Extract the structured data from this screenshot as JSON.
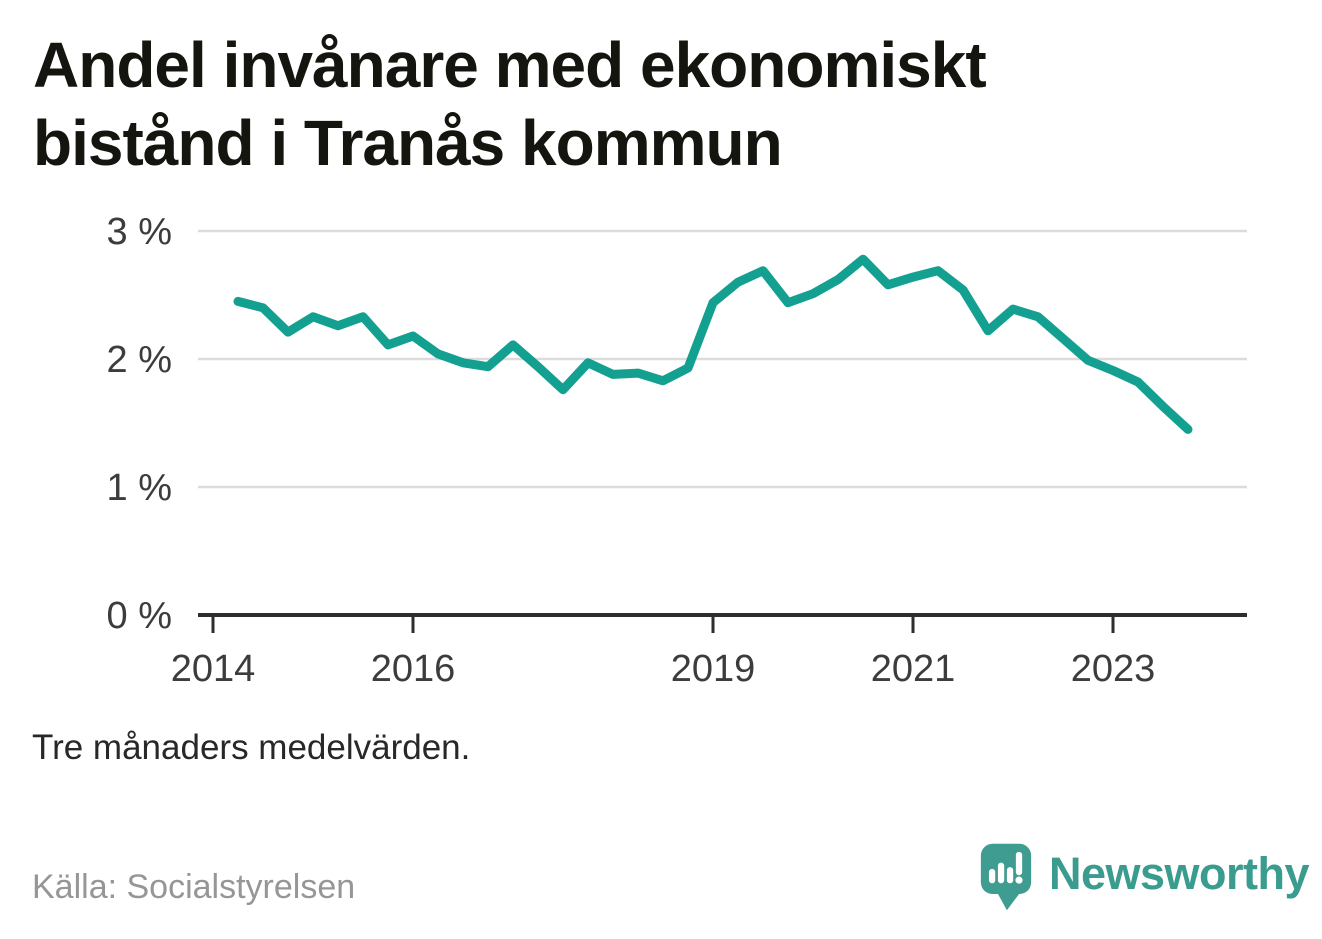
{
  "title": {
    "line1": "Andel invånare med ekonomiskt",
    "line2": "bistånd i Tranås kommun"
  },
  "footnote": "Tre månaders medelvärden.",
  "source": "Källa: Socialstyrelsen",
  "logo": {
    "brand": "Newsworthy",
    "icon": "newsworthy-pin-barchart-icon"
  },
  "colors": {
    "line": "#14a091",
    "grid": "#dcdcdc",
    "axis": "#2e2e2e",
    "tick_label": "#3c3c3c",
    "title_text": "#15150f",
    "note_text": "#282828",
    "source_text": "#969696",
    "logo_teal": "#3f9c90",
    "brand_text": "#3a9b8f"
  },
  "chart_data": {
    "type": "line",
    "title": "Andel invånare med ekonomiskt bistånd i Tranås kommun",
    "unit": "%",
    "series_name": "Andel invånare med ekonomiskt bistånd, Tranås kommun",
    "x_start_year": 2014.25,
    "x_step_years": 0.25,
    "values": [
      2.45,
      2.4,
      2.21,
      2.33,
      2.26,
      2.33,
      2.11,
      2.18,
      2.04,
      1.97,
      1.94,
      2.11,
      1.94,
      1.76,
      1.97,
      1.88,
      1.89,
      1.83,
      1.93,
      2.44,
      2.6,
      2.69,
      2.44,
      2.51,
      2.62,
      2.78,
      2.58,
      2.64,
      2.69,
      2.54,
      2.22,
      2.39,
      2.33,
      2.16,
      1.99,
      1.91,
      1.82,
      1.63,
      1.45
    ],
    "x_tick_years": [
      2014,
      2016,
      2019,
      2021,
      2023
    ],
    "x_tick_labels": [
      "2014",
      "2016",
      "2019",
      "2021",
      "2023"
    ],
    "y_tick_values": [
      0,
      1,
      2,
      3
    ],
    "y_tick_labels": [
      "0 %",
      "1 %",
      "2 %",
      "3 %"
    ],
    "ylim": [
      0,
      3.2
    ],
    "xlim": [
      2013.85,
      2024.34
    ],
    "grid": "horizontal-only",
    "legend": "none",
    "note": "Tre månaders medelvärden."
  }
}
